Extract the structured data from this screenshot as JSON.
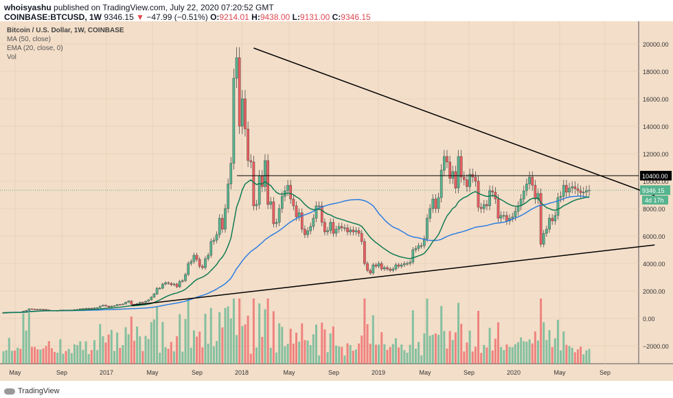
{
  "header": {
    "author": "whoisyashu",
    "published": "published on TradingView.com, July 22, 2020 07:20:52 GMT",
    "symbol": "COINBASE:BTCUSD, 1W",
    "last": "9346.15",
    "change": "−47.99 (−0.51%)",
    "o_label": "O:",
    "o": "9214.01",
    "h_label": "H:",
    "h": "9438.00",
    "l_label": "L:",
    "l": "9131.00",
    "c_label": "C:",
    "c": "9346.15"
  },
  "legend": {
    "title": "Bitcoin / U.S. Dollar, 1W, COINBASE",
    "ma": "MA (50, close)",
    "ema": "EMA (20, close, 0)",
    "vol": "Vol"
  },
  "footer": {
    "brand": "TradingView"
  },
  "colors": {
    "background": "#f3dec9",
    "up": "#56b48f",
    "down": "#ec5d5f",
    "ma": "#2b7de0",
    "ema": "#0f7a52",
    "trendline": "#000000"
  },
  "chart_data": {
    "type": "candlestick",
    "interval": "1W",
    "start_week": "2016-04-04",
    "closes": [
      420,
      425,
      450,
      460,
      455,
      460,
      445,
      530,
      580,
      700,
      680,
      670,
      650,
      660,
      655,
      625,
      590,
      585,
      575,
      575,
      605,
      610,
      605,
      608,
      615,
      640,
      655,
      700,
      710,
      740,
      745,
      735,
      770,
      790,
      900,
      960,
      900,
      820,
      900,
      920,
      1010,
      1000,
      1050,
      1180,
      1270,
      1030,
      970,
      1080,
      1180,
      1170,
      1250,
      1350,
      1550,
      1780,
      2200,
      2200,
      2500,
      2600,
      2550,
      2450,
      2500,
      2300,
      2700,
      2750,
      3200,
      4000,
      4150,
      4600,
      4300,
      3800,
      3700,
      4350,
      4600,
      5600,
      5700,
      6100,
      7300,
      6500,
      8000,
      9800,
      11300,
      17500,
      19000,
      14000,
      16000,
      13800,
      11500,
      11400,
      8200,
      8300,
      10400,
      9600,
      11500,
      8300,
      8500,
      6900,
      7000,
      8000,
      8900,
      9300,
      9700,
      8700,
      8200,
      7400,
      7700,
      6500,
      6100,
      6380,
      6700,
      7300,
      8200,
      8200,
      7000,
      6300,
      6400,
      7000,
      6200,
      6500,
      6700,
      6600,
      6600,
      6300,
      6450,
      6300,
      6400,
      6200,
      5600,
      4000,
      3500,
      3300,
      3900,
      3800,
      4000,
      3600,
      3700,
      3600,
      3500,
      3600,
      3900,
      3800,
      3900,
      4000,
      4000,
      4100,
      5000,
      5100,
      5300,
      5300,
      5800,
      7300,
      8000,
      8700,
      8000,
      8800,
      10800,
      11800,
      11400,
      10200,
      10700,
      9500,
      11800,
      10300,
      10100,
      9600,
      10500,
      10300,
      10000,
      8100,
      8000,
      8300,
      8200,
      9300,
      9200,
      8700,
      7300,
      7500,
      7500,
      7100,
      7300,
      7400,
      7800,
      8200,
      8700,
      9300,
      9800,
      10300,
      9700,
      8700,
      9100,
      5400,
      6200,
      6500,
      7300,
      7100,
      7500,
      8800,
      8900,
      9700,
      9200,
      9500,
      9600,
      9450,
      9300,
      9150,
      9200,
      9300,
      9346.15
    ],
    "y_ticks": [
      "20000.00",
      "18000.00",
      "16000.00",
      "14000.00",
      "12000.00",
      "10000.00",
      "8000.00",
      "6000.00",
      "4000.00",
      "2000.00",
      "0.00",
      "−2000.00"
    ],
    "x_ticks": [
      "May",
      "Sep",
      "2017",
      "May",
      "Sep",
      "2018",
      "May",
      "Sep",
      "2019",
      "May",
      "Sep",
      "2020",
      "May",
      "Sep"
    ],
    "indicators": [
      "MA 50",
      "EMA 20",
      "Volume"
    ],
    "trendlines": [
      {
        "from": [
          "2017-12-11",
          19700
        ],
        "to": [
          "2020-08-24",
          8950
        ]
      },
      {
        "from": [
          "2017-02-13",
          950
        ],
        "to": [
          "2020-08-24",
          5350
        ]
      }
    ],
    "horizontal_level": {
      "label": "10400.00",
      "value": 10400
    },
    "price_label": "9346.15",
    "countdown": "4d 17h"
  }
}
